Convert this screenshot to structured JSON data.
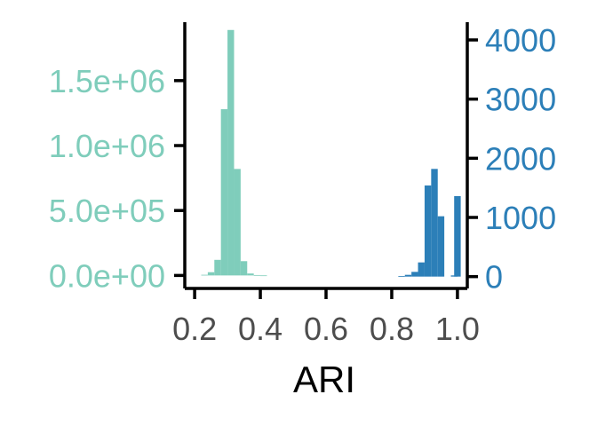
{
  "chart_data": {
    "type": "bar",
    "xlabel": "ARI",
    "x_ticks": [
      0.2,
      0.4,
      0.6,
      0.8,
      1.0
    ],
    "x_tick_labels": [
      "0.2",
      "0.4",
      "0.6",
      "0.8",
      "1.0"
    ],
    "xlim": [
      0.17,
      1.03
    ],
    "bin_width": 0.02,
    "left_axis": {
      "ylim": [
        -100000,
        1950000
      ],
      "ticks": [
        0,
        500000,
        1000000,
        1500000
      ],
      "tick_labels": [
        "0.0e+00",
        "5.0e+05",
        "1.0e+06",
        "1.5e+06"
      ],
      "color": "#7fcdbb"
    },
    "right_axis": {
      "ylim": [
        -200,
        4300
      ],
      "ticks": [
        0,
        1000,
        2000,
        3000,
        4000
      ],
      "tick_labels": [
        "0",
        "1000",
        "2000",
        "3000",
        "4000"
      ],
      "color": "#2c7fb8"
    },
    "series": [
      {
        "axis": "left",
        "color": "#7fcdbb",
        "x": [
          0.23,
          0.25,
          0.27,
          0.29,
          0.31,
          0.33,
          0.35,
          0.37,
          0.39,
          0.41
        ],
        "values": [
          5000,
          25000,
          120000,
          1280000,
          1890000,
          820000,
          110000,
          15000,
          3000,
          500
        ]
      },
      {
        "axis": "right",
        "color": "#2c7fb8",
        "x": [
          0.83,
          0.85,
          0.87,
          0.89,
          0.91,
          0.93,
          0.95,
          0.97,
          0.99,
          1.0
        ],
        "values": [
          10,
          30,
          80,
          240,
          1540,
          1820,
          1020,
          0,
          20,
          1360
        ]
      }
    ]
  }
}
